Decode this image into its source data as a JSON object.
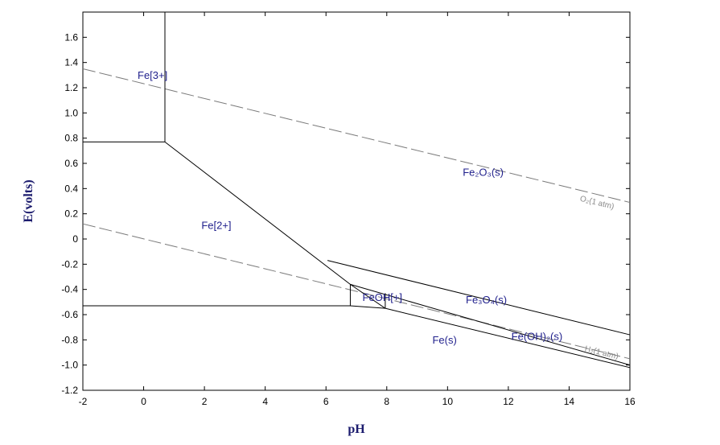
{
  "chart_data": {
    "type": "line",
    "title": "",
    "xlabel": "pH",
    "ylabel": "E(volts)",
    "xlim": [
      -2,
      16
    ],
    "ylim": [
      -1.2,
      1.8
    ],
    "xticks": [
      "-2",
      "0",
      "2",
      "4",
      "6",
      "8",
      "10",
      "12",
      "14",
      "16"
    ],
    "yticks": [
      "-1.2",
      "-1.0",
      "-0.8",
      "-0.6",
      "-0.4",
      "-0.2",
      "0",
      "0.2",
      "0.4",
      "0.6",
      "0.8",
      "1.0",
      "1.2",
      "1.4",
      "1.6"
    ],
    "grid": false,
    "colors": {
      "boundary": "#000000",
      "water": "#7a7a7a",
      "labels": "#1f1f8c"
    },
    "boundaries": [
      {
        "x": [
          0.7,
          0.7
        ],
        "y": [
          0.77,
          1.8
        ]
      },
      {
        "x": [
          -2,
          0.7
        ],
        "y": [
          0.77,
          0.77
        ]
      },
      {
        "x": [
          0.7,
          6.8
        ],
        "y": [
          0.77,
          -0.36
        ]
      },
      {
        "x": [
          -2,
          6.8
        ],
        "y": [
          -0.53,
          -0.53
        ]
      },
      {
        "x": [
          6.8,
          7.95
        ],
        "y": [
          -0.36,
          -0.55
        ]
      },
      {
        "x": [
          6.8,
          6.8
        ],
        "y": [
          -0.36,
          -0.53
        ]
      },
      {
        "x": [
          6.8,
          7.95
        ],
        "y": [
          -0.53,
          -0.55
        ]
      },
      {
        "x": [
          7.95,
          7.95
        ],
        "y": [
          -0.43,
          -0.55
        ]
      },
      {
        "x": [
          6.05,
          16
        ],
        "y": [
          -0.17,
          -0.76
        ]
      },
      {
        "x": [
          6.8,
          16
        ],
        "y": [
          -0.36,
          -1.0
        ]
      },
      {
        "x": [
          7.95,
          16
        ],
        "y": [
          -0.55,
          -1.02
        ]
      }
    ],
    "water_lines": [
      {
        "x": [
          -2,
          16
        ],
        "y": [
          1.35,
          0.29
        ]
      },
      {
        "x": [
          -2,
          16
        ],
        "y": [
          0.12,
          -0.95
        ]
      }
    ],
    "region_labels": [
      {
        "text": "Fe[3+]",
        "x": -0.2,
        "y": 1.27
      },
      {
        "text": "Fe[2+]",
        "x": 1.9,
        "y": 0.08
      },
      {
        "text": "Fe(s)",
        "x": 9.5,
        "y": -0.83
      },
      {
        "text": "FeOH[+]",
        "x": 7.2,
        "y": -0.49
      },
      {
        "text": "Fe₂O₃(s)",
        "x": 10.5,
        "y": 0.5
      },
      {
        "text": "Fe₃O₄(s)",
        "x": 10.6,
        "y": -0.51
      },
      {
        "text": "Fe(OH)₂(s)",
        "x": 12.1,
        "y": -0.8
      }
    ],
    "line_labels": [
      {
        "text": "O₂(1 atm)",
        "x": 14.9,
        "y": 0.27,
        "slope": -0.0592
      },
      {
        "text": "H₂(1 atm)",
        "x": 15.05,
        "y": -0.92,
        "slope": -0.0592
      }
    ]
  }
}
